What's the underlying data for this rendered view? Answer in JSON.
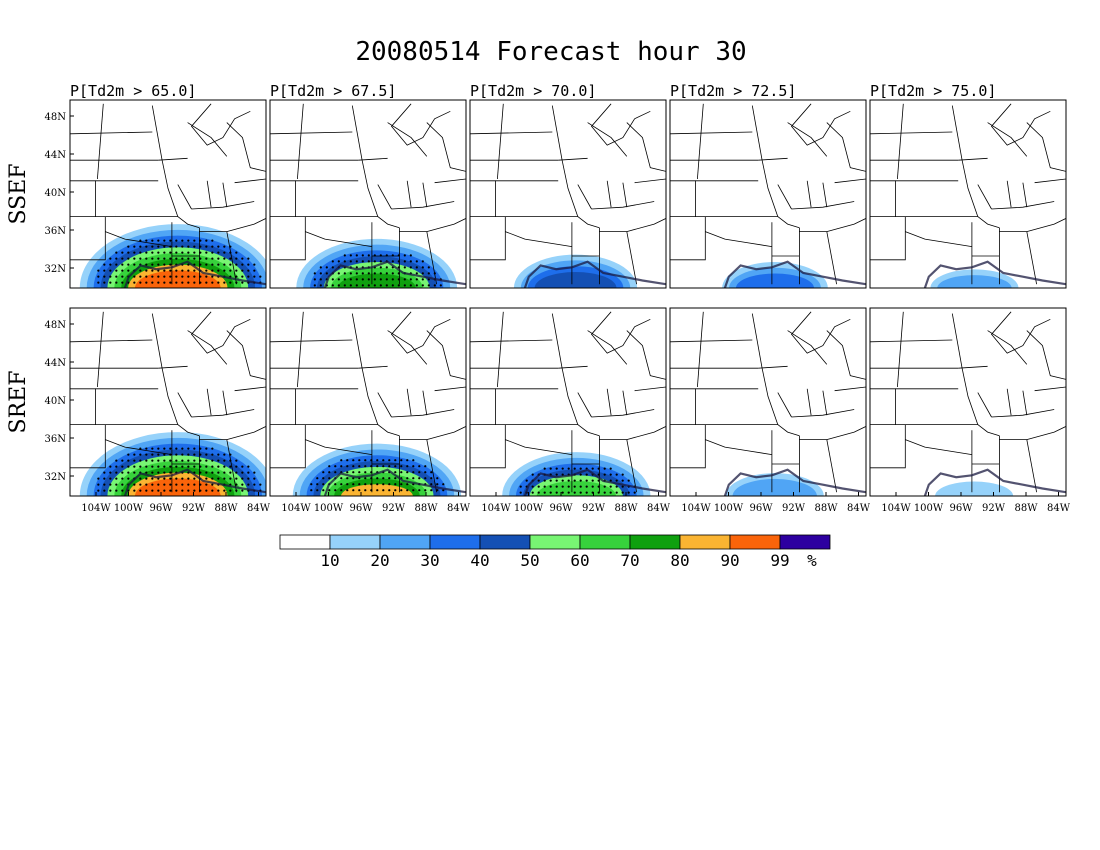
{
  "title": "20080514 Forecast hour 30",
  "panel_titles": [
    "P[Td2m > 65.0]",
    "P[Td2m > 67.5]",
    "P[Td2m > 70.0]",
    "P[Td2m > 72.5]",
    "P[Td2m > 75.0]"
  ],
  "rows": [
    {
      "label": "SSEF",
      "intensity": [
        1.0,
        0.72,
        0.42,
        0.28,
        0.14
      ]
    },
    {
      "label": "SREF",
      "intensity": [
        1.0,
        0.78,
        0.62,
        0.22,
        0.06
      ]
    }
  ],
  "lat_labels": [
    "48N",
    "44N",
    "40N",
    "36N",
    "32N"
  ],
  "lon_labels": [
    "104W",
    "100W",
    "96W",
    "92W",
    "88W",
    "84W"
  ],
  "colorbar": {
    "thresholds": [
      "10",
      "20",
      "30",
      "40",
      "50",
      "60",
      "70",
      "80",
      "90",
      "99"
    ],
    "unit": "%",
    "colors": [
      "#ffffff",
      "#96d2fa",
      "#50a5f5",
      "#1e6eeb",
      "#1450b4",
      "#78f573",
      "#37d23c",
      "#0fa00f",
      "#fab432",
      "#fa640a",
      "#2d00a0"
    ]
  },
  "stipple_note": ""
}
